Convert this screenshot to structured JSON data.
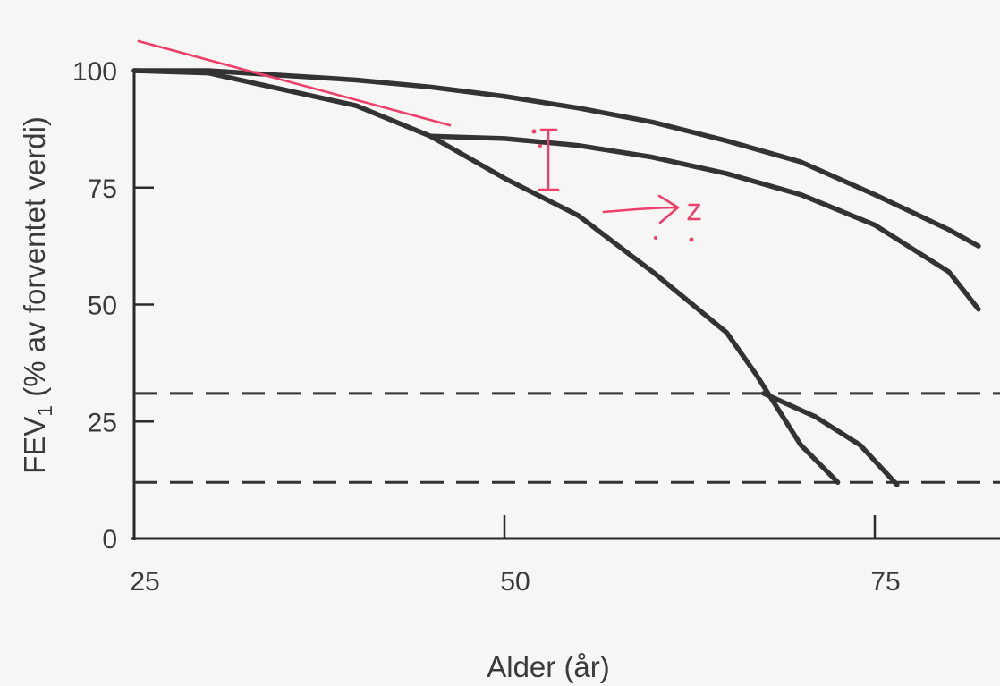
{
  "chart_data": {
    "type": "line",
    "xlabel": "Alder (år)",
    "ylabel": "FEV",
    "ylabel_subscript": "1",
    "ylabel_rest": " (% av forventet verdi)",
    "xlim": [
      25,
      82
    ],
    "ylim": [
      0,
      100
    ],
    "x_ticks": [
      25,
      50,
      75
    ],
    "y_ticks": [
      0,
      25,
      50,
      75,
      100
    ],
    "grid": false,
    "series": [
      {
        "x": [
          25,
          30,
          35,
          40,
          45,
          50,
          55,
          60,
          65,
          70,
          75,
          80,
          82
        ],
        "y": [
          100,
          100,
          99,
          98,
          96.5,
          94.5,
          92,
          89,
          85,
          80.5,
          73.5,
          66,
          62.5
        ]
      },
      {
        "x": [
          25,
          30,
          35,
          40,
          45,
          50,
          55,
          60,
          65,
          67,
          70,
          72.5
        ],
        "y": [
          100,
          99.5,
          96,
          92.5,
          86,
          77,
          69,
          57,
          44,
          35,
          20,
          12
        ]
      },
      {
        "x": [
          45,
          50,
          55,
          60,
          65,
          70,
          75,
          80,
          82
        ],
        "y": [
          86,
          85.5,
          84,
          81.5,
          78,
          73.5,
          67,
          57,
          49
        ]
      },
      {
        "x": [
          67.5,
          71,
          74,
          76.5
        ],
        "y": [
          31,
          26,
          20,
          11.5
        ]
      }
    ],
    "reference_lines": [
      {
        "y": 31
      },
      {
        "y": 12
      }
    ],
    "annotations": [
      {
        "type": "handwritten-arrow",
        "text": "Z",
        "color": "#ee3f6a"
      }
    ]
  }
}
